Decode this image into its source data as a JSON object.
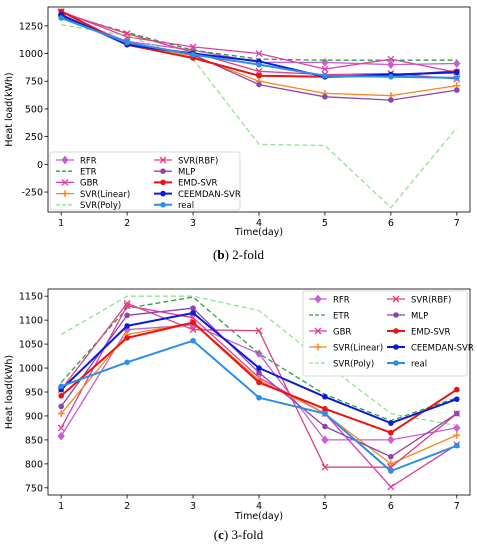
{
  "figure": {
    "captions": [
      {
        "letter": "b",
        "text": " 2-fold"
      },
      {
        "letter": "c",
        "text": " 3-fold"
      }
    ]
  },
  "chart_data": [
    {
      "type": "line",
      "xlabel": "Time(day)",
      "ylabel": "Heat load(kWh)",
      "x": [
        1,
        2,
        3,
        4,
        5,
        6,
        7
      ],
      "xlim": [
        0.8,
        7.2
      ],
      "ylim": [
        -430,
        1420
      ],
      "yticks": [
        -250,
        0,
        250,
        500,
        750,
        1000,
        1250
      ],
      "grid": false,
      "legend": {
        "placement": "bottom-left",
        "columns": 2
      },
      "series": [
        {
          "name": "RFR",
          "color": "#c45fd6",
          "dash": "solid",
          "marker": "diamond",
          "width": 1.3,
          "values": [
            1340,
            1110,
            1030,
            920,
            920,
            900,
            910
          ]
        },
        {
          "name": "ETR",
          "color": "#2e9e3a",
          "dash": "dashed",
          "marker": "none",
          "width": 1.3,
          "values": [
            1360,
            1190,
            1030,
            950,
            940,
            940,
            940
          ]
        },
        {
          "name": "GBR",
          "color": "#dc3ea4",
          "dash": "solid",
          "marker": "x",
          "width": 1.3,
          "values": [
            1380,
            1150,
            1060,
            1000,
            860,
            950,
            830
          ]
        },
        {
          "name": "SVR(Linear)",
          "color": "#f58a1f",
          "dash": "solid",
          "marker": "plus",
          "width": 1.3,
          "values": [
            1340,
            1090,
            980,
            750,
            640,
            620,
            710
          ]
        },
        {
          "name": "SVR(Poly)",
          "color": "#8fe38f",
          "dash": "dashed",
          "marker": "none",
          "width": 1.3,
          "values": [
            1260,
            1160,
            950,
            180,
            170,
            -390,
            330
          ]
        },
        {
          "name": "SVR(RBF)",
          "color": "#e0407f",
          "dash": "solid",
          "marker": "x",
          "width": 1.3,
          "values": [
            1370,
            1180,
            1010,
            840,
            810,
            820,
            770
          ]
        },
        {
          "name": "MLP",
          "color": "#8e44ad",
          "dash": "solid",
          "marker": "dot",
          "width": 1.3,
          "values": [
            1330,
            1100,
            990,
            720,
            610,
            580,
            670
          ]
        },
        {
          "name": "EMD-SVR",
          "color": "#ee1111",
          "dash": "solid",
          "marker": "dot",
          "width": 2,
          "values": [
            1380,
            1080,
            960,
            800,
            790,
            800,
            840
          ]
        },
        {
          "name": "CEEMDAN-SVR",
          "color": "#0a1cd6",
          "dash": "solid",
          "marker": "dot",
          "width": 2,
          "values": [
            1350,
            1080,
            1000,
            930,
            790,
            810,
            830
          ]
        },
        {
          "name": "real",
          "color": "#2d8ee8",
          "dash": "solid",
          "marker": "dot",
          "width": 2,
          "values": [
            1320,
            1100,
            990,
            900,
            800,
            790,
            780
          ]
        }
      ]
    },
    {
      "type": "line",
      "xlabel": "Time(day)",
      "ylabel": "Heat load(kWh)",
      "x": [
        1,
        2,
        3,
        4,
        5,
        6,
        7
      ],
      "xlim": [
        0.8,
        7.2
      ],
      "ylim": [
        735,
        1165
      ],
      "yticks": [
        750,
        800,
        850,
        900,
        950,
        1000,
        1050,
        1100,
        1150
      ],
      "grid": false,
      "legend": {
        "placement": "top-right",
        "columns": 2
      },
      "series": [
        {
          "name": "RFR",
          "color": "#c45fd6",
          "dash": "solid",
          "marker": "diamond",
          "width": 1.3,
          "values": [
            858,
            1080,
            1090,
            1030,
            850,
            850,
            875
          ]
        },
        {
          "name": "ETR",
          "color": "#2e9e3a",
          "dash": "dashed",
          "marker": "none",
          "width": 1.3,
          "values": [
            970,
            1125,
            1148,
            1030,
            945,
            890,
            938
          ]
        },
        {
          "name": "GBR",
          "color": "#dc3ea4",
          "dash": "solid",
          "marker": "x",
          "width": 1.3,
          "values": [
            875,
            1130,
            1105,
            980,
            905,
            752,
            840
          ]
        },
        {
          "name": "SVR(Linear)",
          "color": "#f58a1f",
          "dash": "solid",
          "marker": "plus",
          "width": 1.3,
          "values": [
            905,
            1070,
            1095,
            975,
            905,
            800,
            860
          ]
        },
        {
          "name": "SVR(Poly)",
          "color": "#8fe38f",
          "dash": "dashed",
          "marker": "none",
          "width": 1.3,
          "values": [
            1070,
            1150,
            1150,
            1120,
            1010,
            905,
            880
          ]
        },
        {
          "name": "SVR(RBF)",
          "color": "#e0407f",
          "dash": "solid",
          "marker": "x",
          "width": 1.3,
          "values": [
            955,
            1135,
            1080,
            1078,
            793,
            793,
            905
          ]
        },
        {
          "name": "MLP",
          "color": "#8e44ad",
          "dash": "solid",
          "marker": "dot",
          "width": 1.3,
          "values": [
            920,
            1110,
            1125,
            990,
            878,
            815,
            905
          ]
        },
        {
          "name": "EMD-SVR",
          "color": "#ee1111",
          "dash": "solid",
          "marker": "dot",
          "width": 2,
          "values": [
            942,
            1063,
            1095,
            970,
            915,
            865,
            955
          ]
        },
        {
          "name": "CEEMDAN-SVR",
          "color": "#0a1cd6",
          "dash": "solid",
          "marker": "dot",
          "width": 2,
          "values": [
            955,
            1088,
            1115,
            1000,
            940,
            885,
            935
          ]
        },
        {
          "name": "real",
          "color": "#2d8ee8",
          "dash": "solid",
          "marker": "dot",
          "width": 2,
          "values": [
            962,
            1012,
            1057,
            938,
            905,
            785,
            838
          ]
        }
      ]
    }
  ]
}
